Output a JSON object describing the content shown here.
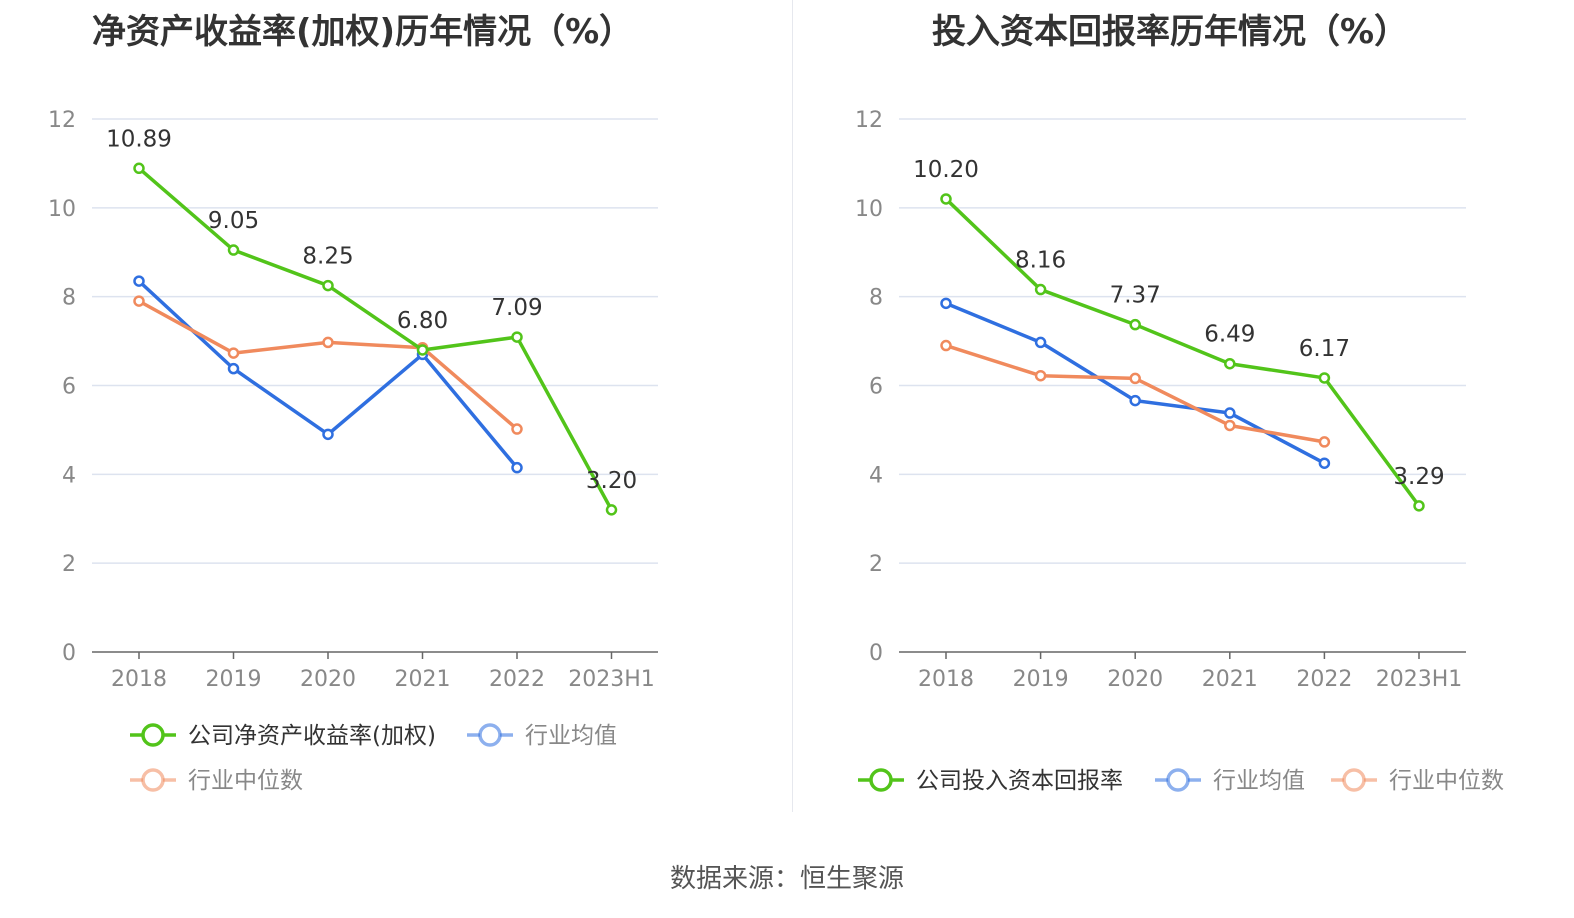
{
  "colors": {
    "company": "#52c41a",
    "industry_avg": "#2f6fe0",
    "industry_median": "#f08a5d",
    "grid": "#dde3ef",
    "axis": "#666666"
  },
  "source": "数据来源：恒生聚源",
  "chart_data": [
    {
      "type": "line",
      "title": "净资产收益率(加权)历年情况（%）",
      "categories": [
        "2018",
        "2019",
        "2020",
        "2021",
        "2022",
        "2023H1"
      ],
      "ylim": [
        0,
        12
      ],
      "yticks": [
        "0",
        "2",
        "4",
        "6",
        "8",
        "10",
        "12"
      ],
      "grid": true,
      "legend_position": "bottom",
      "series": [
        {
          "name": "公司净资产收益率(加权)",
          "color_key": "company",
          "values": [
            10.89,
            9.05,
            8.25,
            6.8,
            7.09,
            3.2
          ],
          "labels": [
            "10.89",
            "9.05",
            "8.25",
            "6.80",
            "7.09",
            "3.20"
          ]
        },
        {
          "name": "行业均值",
          "color_key": "industry_avg",
          "values": [
            8.35,
            6.38,
            4.9,
            6.7,
            4.15,
            null
          ]
        },
        {
          "name": "行业中位数",
          "color_key": "industry_median",
          "values": [
            7.9,
            6.73,
            6.97,
            6.85,
            5.02,
            null
          ]
        }
      ]
    },
    {
      "type": "line",
      "title": "投入资本回报率历年情况（%）",
      "categories": [
        "2018",
        "2019",
        "2020",
        "2021",
        "2022",
        "2023H1"
      ],
      "ylim": [
        0,
        12
      ],
      "yticks": [
        "0",
        "2",
        "4",
        "6",
        "8",
        "10",
        "12"
      ],
      "grid": true,
      "legend_position": "bottom",
      "series": [
        {
          "name": "公司投入资本回报率",
          "color_key": "company",
          "values": [
            10.2,
            8.16,
            7.37,
            6.49,
            6.17,
            3.29
          ],
          "labels": [
            "10.20",
            "8.16",
            "7.37",
            "6.49",
            "6.17",
            "3.29"
          ]
        },
        {
          "name": "行业均值",
          "color_key": "industry_avg",
          "values": [
            7.85,
            6.97,
            5.66,
            5.38,
            4.25,
            null
          ]
        },
        {
          "name": "行业中位数",
          "color_key": "industry_median",
          "values": [
            6.9,
            6.22,
            6.16,
            5.1,
            4.73,
            null
          ]
        }
      ]
    }
  ]
}
